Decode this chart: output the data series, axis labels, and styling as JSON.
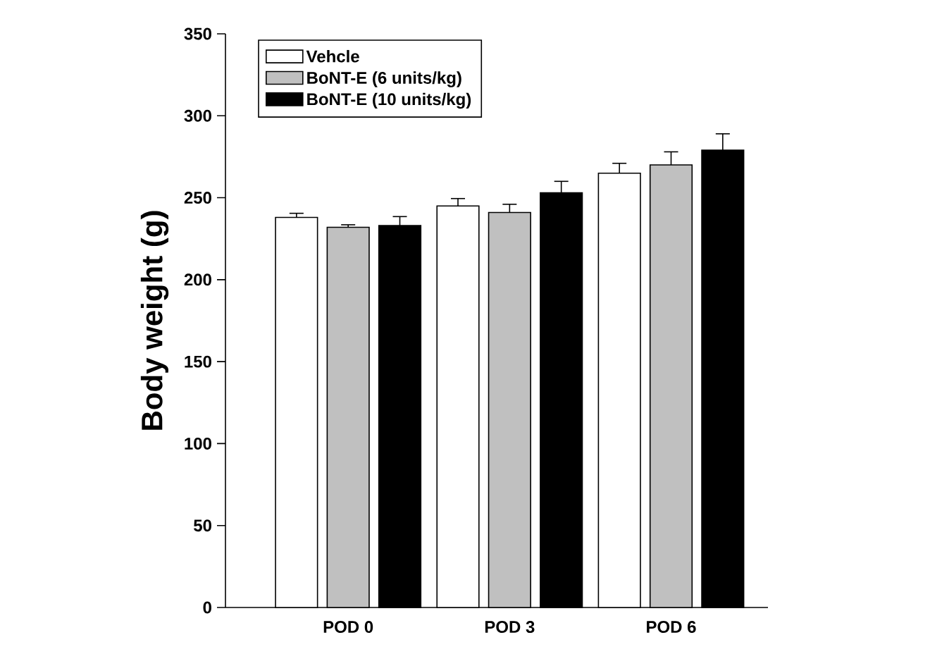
{
  "chart_data": {
    "type": "bar",
    "ylabel": "Body weight (g)",
    "categories": [
      "POD 0",
      "POD 3",
      "POD 6"
    ],
    "series": [
      {
        "name": "Vehcle",
        "color": "#ffffff",
        "values": [
          238,
          245,
          265
        ],
        "errors": [
          2.5,
          4.5,
          6
        ]
      },
      {
        "name": "BoNT-E (6 units/kg)",
        "color": "#c0c0c0",
        "values": [
          232,
          241,
          270
        ],
        "errors": [
          1.5,
          5,
          8
        ]
      },
      {
        "name": "BoNT-E (10 units/kg)",
        "color": "#000000",
        "values": [
          233,
          253,
          279
        ],
        "errors": [
          5.5,
          7,
          10
        ]
      }
    ],
    "ylim": [
      0,
      350
    ],
    "yticks": [
      0,
      50,
      100,
      150,
      200,
      250,
      300,
      350
    ],
    "legend": "top left",
    "grid": false
  }
}
